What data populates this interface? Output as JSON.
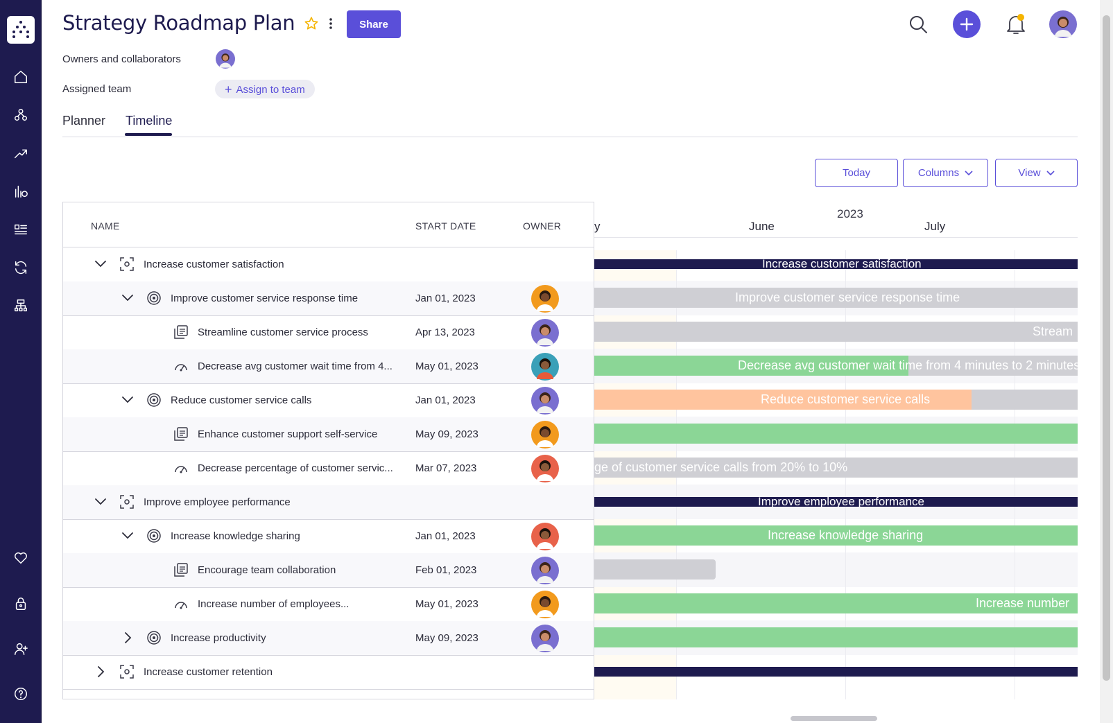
{
  "app": {
    "title": "Strategy Roadmap Plan",
    "share_label": "Share",
    "accent_color": "#5a4fd9",
    "sidebar_color": "#1e1b4f"
  },
  "sidebar": {
    "items": [
      {
        "icon": "home-icon"
      },
      {
        "icon": "hierarchy-icon"
      },
      {
        "icon": "trend-icon"
      },
      {
        "icon": "bar-chart-icon"
      },
      {
        "icon": "list-icon"
      },
      {
        "icon": "sync-icon"
      },
      {
        "icon": "org-chart-icon"
      },
      {
        "icon": "heart-icon"
      },
      {
        "icon": "lock-icon"
      },
      {
        "icon": "add-user-icon"
      },
      {
        "icon": "help-icon"
      }
    ]
  },
  "meta": {
    "owners_label": "Owners and collaborators",
    "team_label": "Assigned team",
    "assign_label": "Assign to team"
  },
  "tabs": [
    {
      "label": "Planner",
      "active": false
    },
    {
      "label": "Timeline",
      "active": true
    }
  ],
  "toolbar": {
    "today_label": "Today",
    "columns_label": "Columns",
    "view_label": "View"
  },
  "grid": {
    "columns": [
      "NAME",
      "START DATE",
      "OWNER"
    ],
    "rows": [
      {
        "level": 0,
        "type": "objective",
        "expanded": true,
        "name": "Increase customer satisfaction",
        "date": "",
        "owner": ""
      },
      {
        "level": 1,
        "type": "key-result",
        "expanded": true,
        "name": "Improve customer service response time",
        "date": "Jan 01, 2023",
        "owner": "man-orange"
      },
      {
        "level": 2,
        "type": "project",
        "name": "Streamline customer service process",
        "date": "Apr 13, 2023",
        "owner": "woman-purple"
      },
      {
        "level": 2,
        "type": "metric",
        "name": "Decrease avg customer wait time from 4...",
        "date": "May 01, 2023",
        "owner": "man-teal"
      },
      {
        "level": 1,
        "type": "key-result",
        "expanded": true,
        "name": "Reduce customer service calls",
        "date": "Jan 01, 2023",
        "owner": "woman-purple"
      },
      {
        "level": 2,
        "type": "project",
        "name": "Enhance customer support self-service",
        "date": "May 09, 2023",
        "owner": "man-orange"
      },
      {
        "level": 2,
        "type": "metric",
        "name": "Decrease percentage of customer servic...",
        "date": "Mar 07, 2023",
        "owner": "woman-red"
      },
      {
        "level": 0,
        "type": "objective",
        "expanded": true,
        "name": "Improve employee performance",
        "date": "",
        "owner": ""
      },
      {
        "level": 1,
        "type": "key-result",
        "expanded": true,
        "name": "Increase knowledge sharing",
        "date": "Jan 01, 2023",
        "owner": "woman-red"
      },
      {
        "level": 2,
        "type": "project",
        "name": "Encourage team collaboration",
        "date": "Feb 01, 2023",
        "owner": "woman-purple"
      },
      {
        "level": 2,
        "type": "metric",
        "name": "Increase number of employees...",
        "date": "May 01, 2023",
        "owner": "man-orange"
      },
      {
        "level": 1,
        "type": "key-result",
        "expanded": false,
        "name": "Increase productivity",
        "date": "May 09, 2023",
        "owner": "woman-purple"
      },
      {
        "level": 0,
        "type": "objective",
        "expanded": false,
        "name": "Increase customer retention",
        "date": "",
        "owner": ""
      }
    ]
  },
  "timeline": {
    "year": "2023",
    "months": [
      "y",
      "June",
      "July"
    ],
    "bars": [
      {
        "label": "Increase customer satisfaction",
        "color": "#1e1b4f",
        "kind": "thin",
        "progress": 1.0
      },
      {
        "label": "Improve customer service response time",
        "color": "#cfcfd4",
        "kind": "full",
        "progress": 0.0
      },
      {
        "label": "Stream",
        "color": "#cfcfd4",
        "kind": "full",
        "progress": 0.0
      },
      {
        "label": "Decrease avg customer wait time from 4 minutes to 2 minutes",
        "color": "#cfcfd4",
        "fill": "#8bd696",
        "kind": "full",
        "progress": 0.65
      },
      {
        "label": "Reduce customer service calls",
        "color": "#cfcfd4",
        "fill": "#ffc49e",
        "kind": "full",
        "progress": 0.78
      },
      {
        "label": "",
        "color": "#8bd696",
        "kind": "full",
        "progress": 1.0
      },
      {
        "label": "ge of customer service calls from 20% to 10%",
        "color": "#cfcfd4",
        "kind": "full",
        "progress": 0.0
      },
      {
        "label": "Improve employee performance",
        "color": "#1e1b4f",
        "kind": "thin",
        "progress": 1.0
      },
      {
        "label": "Increase knowledge sharing",
        "color": "#8bd696",
        "kind": "full",
        "progress": 1.0
      },
      {
        "label": "",
        "color": "#cfcfd4",
        "kind": "short",
        "progress": 0.0
      },
      {
        "label": "Increase number",
        "color": "#8bd696",
        "kind": "full",
        "progress": 1.0
      },
      {
        "label": "",
        "color": "#8bd696",
        "kind": "full",
        "progress": 1.0
      },
      {
        "label": "",
        "color": "#1e1b4f",
        "kind": "thin",
        "progress": 1.0
      }
    ]
  }
}
